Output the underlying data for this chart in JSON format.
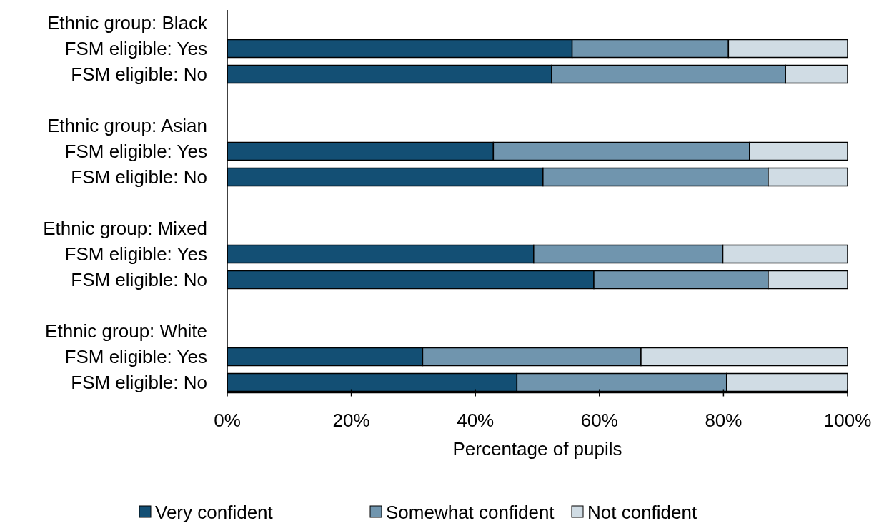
{
  "chart_data": {
    "type": "bar",
    "orientation": "horizontal",
    "stacked": true,
    "xlabel": "Percentage of pupils",
    "categories": [
      "Ethnic group: Black",
      "FSM eligible: Yes",
      "FSM eligible: No",
      null,
      "Ethnic group: Asian",
      "FSM eligible: Yes",
      "FSM eligible: No",
      null,
      "Ethnic group: Mixed",
      "FSM eligible: Yes",
      "FSM eligible: No",
      null,
      "Ethnic group: White",
      "FSM eligible: Yes",
      "FSM eligible: No"
    ],
    "series": [
      {
        "name": "Very confident",
        "color": "#134f74",
        "values": [
          null,
          55.6,
          52.3,
          null,
          null,
          42.9,
          50.9,
          null,
          null,
          49.4,
          59.1,
          null,
          null,
          31.5,
          46.7
        ]
      },
      {
        "name": "Somewhat confident",
        "color": "#7095ae",
        "values": [
          null,
          25.2,
          37.7,
          null,
          null,
          41.3,
          36.3,
          null,
          null,
          30.5,
          28.1,
          null,
          null,
          35.2,
          33.8
        ]
      },
      {
        "name": "Not confident",
        "color": "#d0dce4",
        "values": [
          null,
          19.2,
          10.0,
          null,
          null,
          15.8,
          12.8,
          null,
          null,
          20.1,
          12.8,
          null,
          null,
          33.3,
          19.5
        ]
      }
    ],
    "xlim": [
      0,
      100
    ],
    "xticks": [
      {
        "value": 0,
        "label": "0%"
      },
      {
        "value": 20,
        "label": "20%"
      },
      {
        "value": 40,
        "label": "40%"
      },
      {
        "value": 60,
        "label": "60%"
      },
      {
        "value": 80,
        "label": "80%"
      },
      {
        "value": 100,
        "label": "100%"
      }
    ],
    "grid": false,
    "legend": "bottom"
  }
}
